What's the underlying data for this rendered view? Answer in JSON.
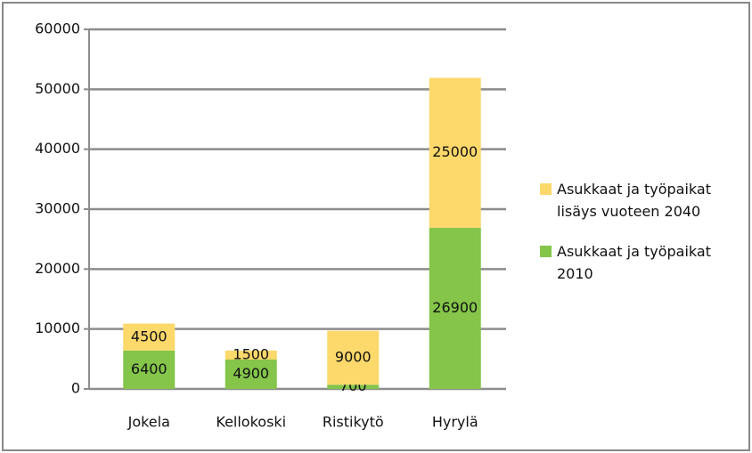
{
  "chart_data": {
    "type": "stacked_bar",
    "categories": [
      "Jokela",
      "Kellokoski",
      "Ristikytö",
      "Hyrylä"
    ],
    "series": [
      {
        "name": "Asukkaat ja työpaikat 2010",
        "color": "#84c54a",
        "values": [
          6400,
          4900,
          700,
          26900
        ]
      },
      {
        "name": "Asukkaat ja työpaikat lisäys vuoteen 2040",
        "color": "#fdd86a",
        "values": [
          4500,
          1500,
          9000,
          25000
        ]
      }
    ],
    "ylim": [
      0,
      60000
    ],
    "yticks": [
      0,
      10000,
      20000,
      30000,
      40000,
      50000,
      60000
    ],
    "grid": true,
    "legend": "right"
  }
}
